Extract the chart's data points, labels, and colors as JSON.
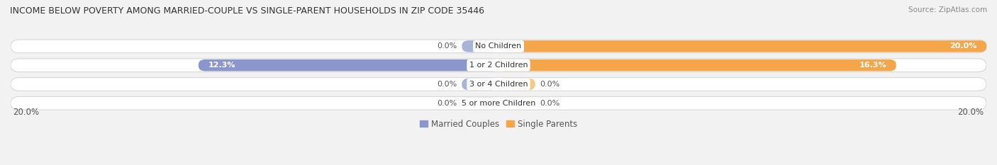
{
  "title": "INCOME BELOW POVERTY AMONG MARRIED-COUPLE VS SINGLE-PARENT HOUSEHOLDS IN ZIP CODE 35446",
  "source": "Source: ZipAtlas.com",
  "categories": [
    "No Children",
    "1 or 2 Children",
    "3 or 4 Children",
    "5 or more Children"
  ],
  "married_values": [
    0.0,
    12.3,
    0.0,
    0.0
  ],
  "single_values": [
    20.0,
    16.3,
    0.0,
    0.0
  ],
  "married_color": "#8B96CC",
  "single_color": "#F5A54A",
  "married_stub_color": "#A8B3D8",
  "single_stub_color": "#F5C98A",
  "axis_max": 20.0,
  "stub_size": 1.5,
  "bg_color": "#F2F2F2",
  "row_bg_color": "#FFFFFF",
  "row_border_color": "#D8D8D8",
  "title_fontsize": 9.0,
  "source_fontsize": 7.5,
  "value_fontsize": 8.0,
  "category_fontsize": 8.0,
  "legend_fontsize": 8.5,
  "axis_label_fontsize": 8.5,
  "bar_height": 0.62,
  "married_label": "Married Couples",
  "single_label": "Single Parents"
}
